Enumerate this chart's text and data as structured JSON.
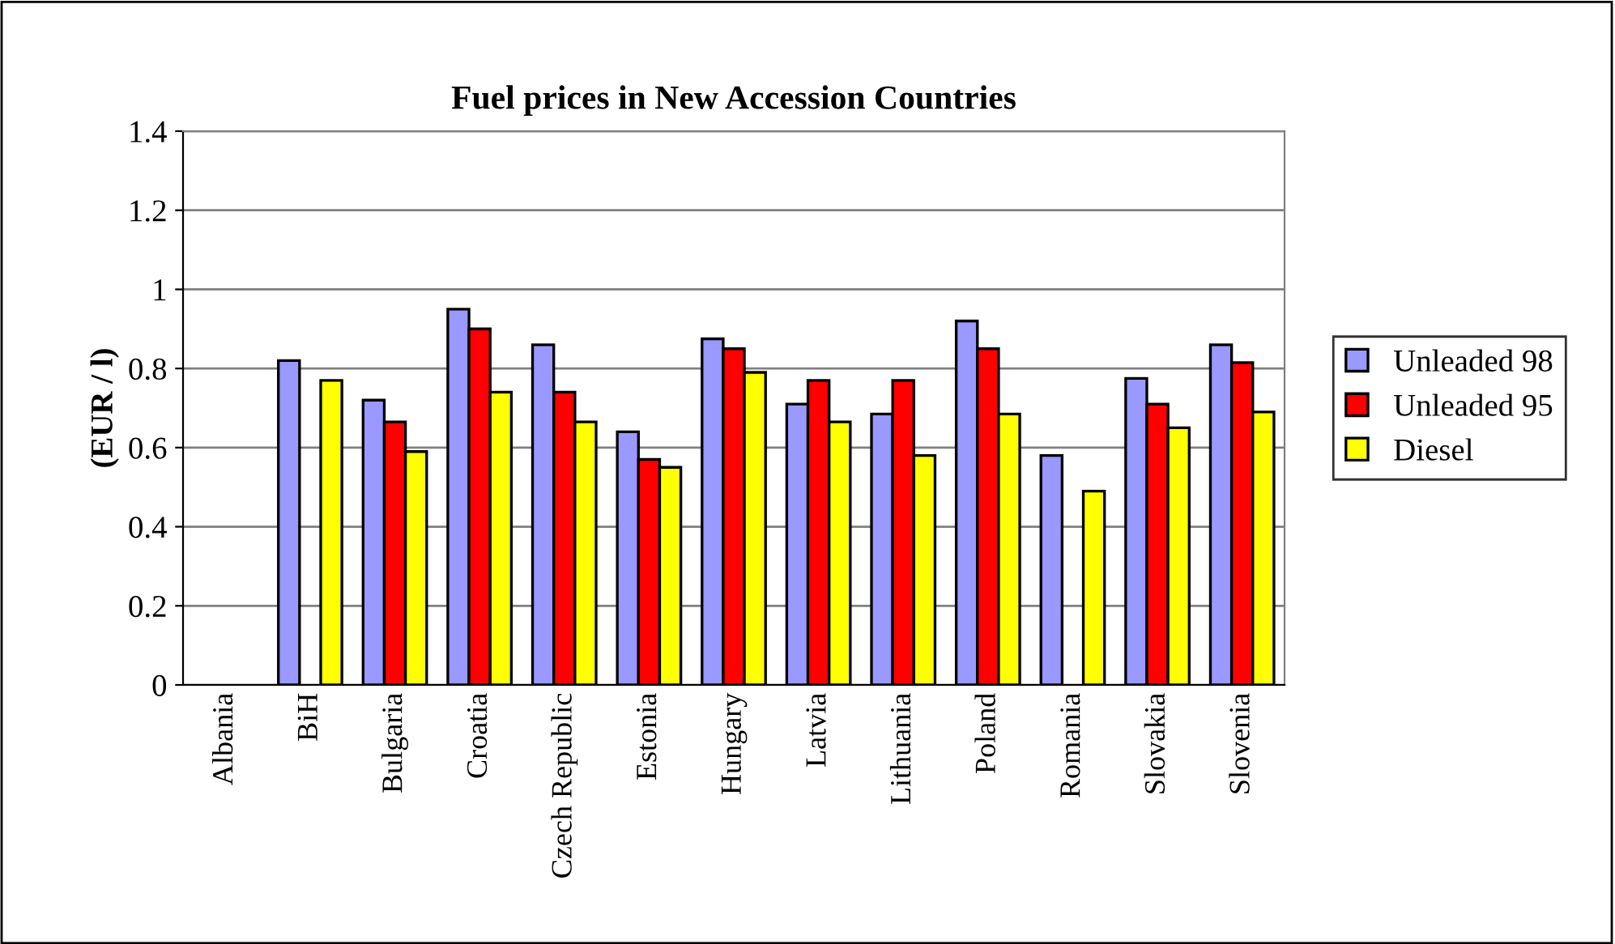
{
  "chart_data": {
    "type": "bar",
    "title": "Fuel prices in New Accession Countries",
    "ylabel": "(EUR / l)",
    "categories": [
      "Albania",
      "BiH",
      "Bulgaria",
      "Croatia",
      "Czech Republic",
      "Estonia",
      "Hungary",
      "Latvia",
      "Lithuania",
      "Poland",
      "Romania",
      "Slovakia",
      "Slovenia"
    ],
    "series": [
      {
        "name": "Unleaded 98",
        "color": "#9999ff",
        "values": [
          null,
          0.82,
          0.72,
          0.95,
          0.86,
          0.64,
          0.875,
          0.71,
          0.685,
          0.92,
          0.58,
          0.775,
          0.86
        ]
      },
      {
        "name": "Unleaded 95",
        "color": "#ff0000",
        "values": [
          null,
          null,
          0.665,
          0.9,
          0.74,
          0.57,
          0.85,
          0.77,
          0.77,
          0.85,
          null,
          0.71,
          0.815
        ]
      },
      {
        "name": "Diesel",
        "color": "#ffff00",
        "values": [
          null,
          0.77,
          0.59,
          0.74,
          0.665,
          0.55,
          0.79,
          0.665,
          0.58,
          0.685,
          0.49,
          0.65,
          0.69
        ]
      }
    ],
    "ylim": [
      0,
      1.4
    ],
    "yticks": [
      0,
      0.2,
      0.4,
      0.6,
      0.8,
      1,
      1.2,
      1.4
    ],
    "grid": "y",
    "legend": "right"
  }
}
